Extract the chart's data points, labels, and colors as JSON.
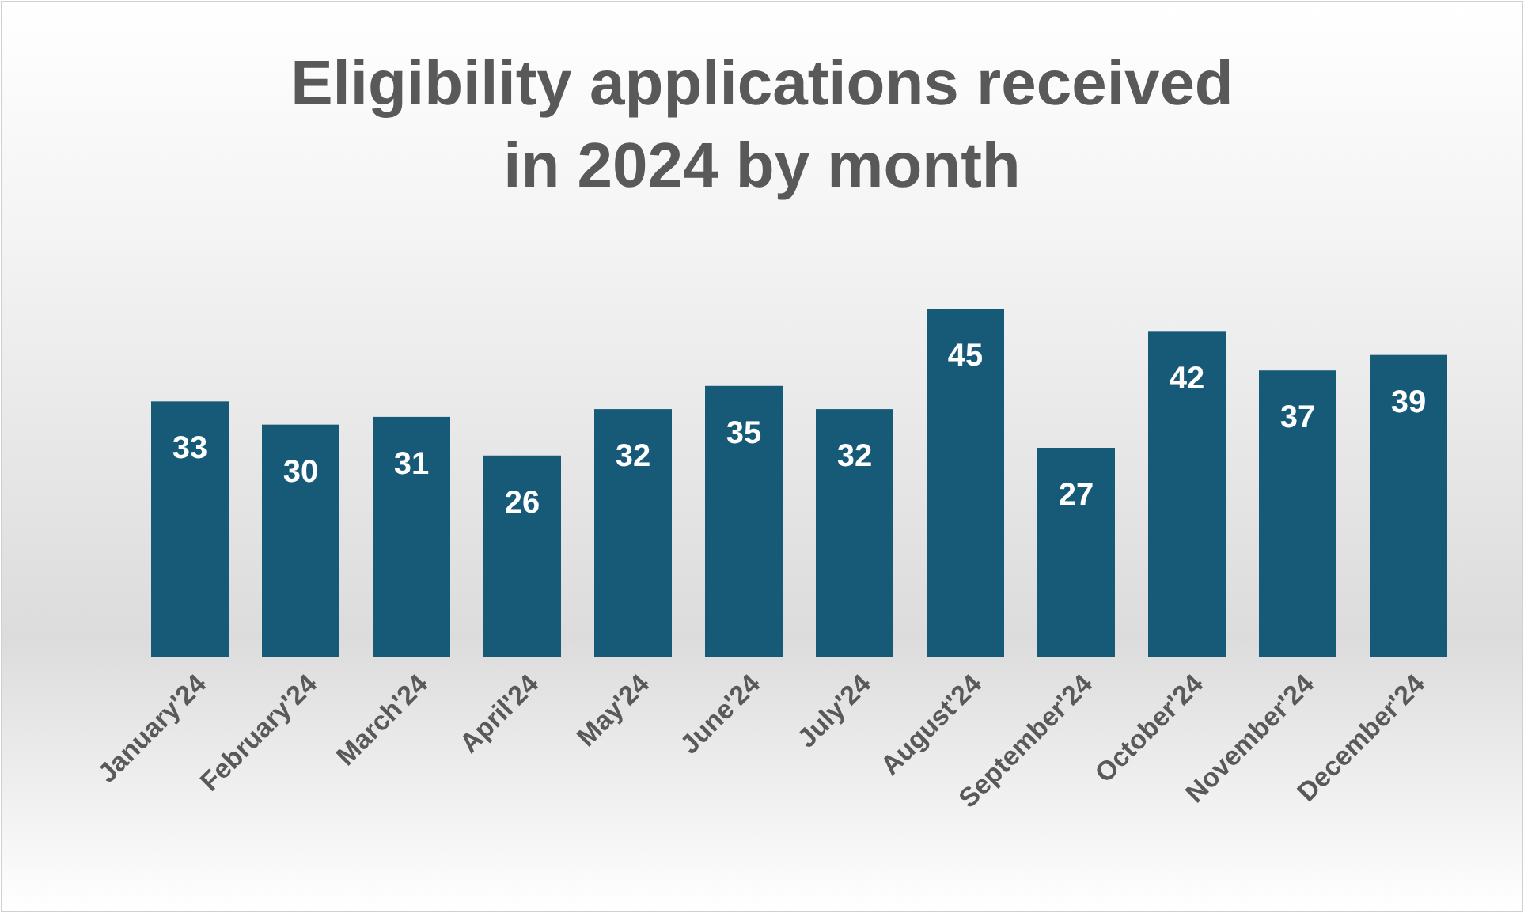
{
  "chart_data": {
    "type": "bar",
    "title": "Eligibility applications received in 2024 by month",
    "categories": [
      "January'24",
      "February'24",
      "March'24",
      "April'24",
      "May'24",
      "June'24",
      "July'24",
      "August'24",
      "September'24",
      "October'24",
      "November'24",
      "December'24"
    ],
    "values": [
      33,
      30,
      31,
      26,
      32,
      35,
      32,
      45,
      27,
      42,
      37,
      39
    ],
    "color": "#175a78",
    "data_labels": true
  }
}
